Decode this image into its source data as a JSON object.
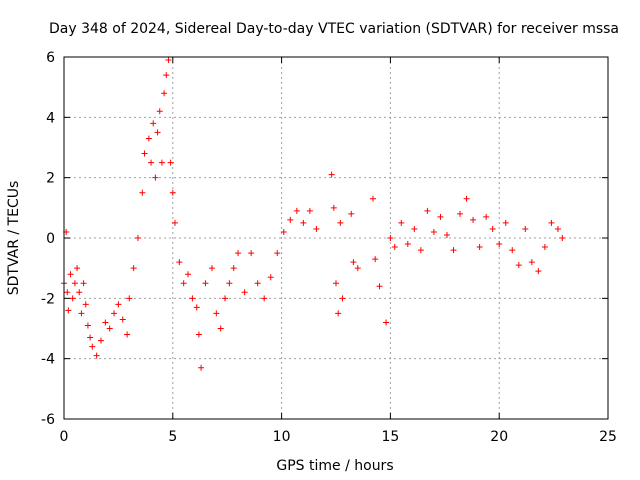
{
  "chart_data": {
    "type": "scatter",
    "title": "Day 348 of 2024, Sidereal Day-to-day VTEC variation (SDTVAR) for receiver mssa",
    "xlabel": "GPS time / hours",
    "ylabel": "SDTVAR / TECUs",
    "xlim": [
      0,
      25
    ],
    "ylim": [
      -6,
      6
    ],
    "x_ticks": [
      0,
      5,
      10,
      15,
      20,
      25
    ],
    "y_ticks": [
      -6,
      -4,
      -2,
      0,
      2,
      4,
      6
    ],
    "x_tick_labels": [
      "0",
      "5",
      "10",
      "15",
      "20",
      "25"
    ],
    "y_tick_labels": [
      "-6",
      "-4",
      "-2",
      "0",
      "2",
      "4",
      "6"
    ],
    "grid": true,
    "marker": "+",
    "series": [
      {
        "name": "SDTVAR",
        "color": "#ff0000",
        "points": [
          [
            0.0,
            -1.5
          ],
          [
            0.1,
            0.2
          ],
          [
            0.15,
            -1.8
          ],
          [
            0.2,
            -2.4
          ],
          [
            0.3,
            -1.2
          ],
          [
            0.4,
            -2.0
          ],
          [
            0.5,
            -1.5
          ],
          [
            0.6,
            -1.0
          ],
          [
            0.7,
            -1.8
          ],
          [
            0.8,
            -2.5
          ],
          [
            0.9,
            -1.5
          ],
          [
            1.0,
            -2.2
          ],
          [
            1.1,
            -2.9
          ],
          [
            1.2,
            -3.3
          ],
          [
            1.3,
            -3.6
          ],
          [
            1.5,
            -3.9
          ],
          [
            1.7,
            -3.4
          ],
          [
            1.9,
            -2.8
          ],
          [
            2.1,
            -3.0
          ],
          [
            2.3,
            -2.5
          ],
          [
            2.5,
            -2.2
          ],
          [
            2.7,
            -2.7
          ],
          [
            2.9,
            -3.2
          ],
          [
            3.0,
            -2.0
          ],
          [
            3.2,
            -1.0
          ],
          [
            3.4,
            0.0
          ],
          [
            3.6,
            1.5
          ],
          [
            3.7,
            2.8
          ],
          [
            3.9,
            3.3
          ],
          [
            4.0,
            2.5
          ],
          [
            4.1,
            3.8
          ],
          [
            4.2,
            2.0
          ],
          [
            4.3,
            3.5
          ],
          [
            4.4,
            4.2
          ],
          [
            4.5,
            2.5
          ],
          [
            4.6,
            4.8
          ],
          [
            4.7,
            5.4
          ],
          [
            4.8,
            5.9
          ],
          [
            4.9,
            2.5
          ],
          [
            5.0,
            1.5
          ],
          [
            5.1,
            0.5
          ],
          [
            5.3,
            -0.8
          ],
          [
            5.5,
            -1.5
          ],
          [
            5.7,
            -1.2
          ],
          [
            5.9,
            -2.0
          ],
          [
            6.1,
            -2.3
          ],
          [
            6.2,
            -3.2
          ],
          [
            6.3,
            -4.3
          ],
          [
            6.5,
            -1.5
          ],
          [
            6.8,
            -1.0
          ],
          [
            7.0,
            -2.5
          ],
          [
            7.2,
            -3.0
          ],
          [
            7.4,
            -2.0
          ],
          [
            7.6,
            -1.5
          ],
          [
            7.8,
            -1.0
          ],
          [
            8.0,
            -0.5
          ],
          [
            8.3,
            -1.8
          ],
          [
            8.6,
            -0.5
          ],
          [
            8.9,
            -1.5
          ],
          [
            9.2,
            -2.0
          ],
          [
            9.5,
            -1.3
          ],
          [
            9.8,
            -0.5
          ],
          [
            10.1,
            0.2
          ],
          [
            10.4,
            0.6
          ],
          [
            10.7,
            0.9
          ],
          [
            11.0,
            0.5
          ],
          [
            11.3,
            0.9
          ],
          [
            11.6,
            0.3
          ],
          [
            12.3,
            2.1
          ],
          [
            12.4,
            1.0
          ],
          [
            12.5,
            -1.5
          ],
          [
            12.6,
            -2.5
          ],
          [
            12.7,
            0.5
          ],
          [
            12.8,
            -2.0
          ],
          [
            13.2,
            0.8
          ],
          [
            13.3,
            -0.8
          ],
          [
            13.5,
            -1.0
          ],
          [
            14.2,
            1.3
          ],
          [
            14.3,
            -0.7
          ],
          [
            14.5,
            -1.6
          ],
          [
            14.8,
            -2.8
          ],
          [
            15.0,
            0.0
          ],
          [
            15.2,
            -0.3
          ],
          [
            15.5,
            0.5
          ],
          [
            15.8,
            -0.2
          ],
          [
            16.1,
            0.3
          ],
          [
            16.4,
            -0.4
          ],
          [
            16.7,
            0.9
          ],
          [
            17.0,
            0.2
          ],
          [
            17.3,
            0.7
          ],
          [
            17.6,
            0.1
          ],
          [
            17.9,
            -0.4
          ],
          [
            18.2,
            0.8
          ],
          [
            18.5,
            1.3
          ],
          [
            18.8,
            0.6
          ],
          [
            19.1,
            -0.3
          ],
          [
            19.4,
            0.7
          ],
          [
            19.7,
            0.3
          ],
          [
            20.0,
            -0.2
          ],
          [
            20.3,
            0.5
          ],
          [
            20.6,
            -0.4
          ],
          [
            20.9,
            -0.9
          ],
          [
            21.2,
            0.3
          ],
          [
            21.5,
            -0.8
          ],
          [
            21.8,
            -1.1
          ],
          [
            22.1,
            -0.3
          ],
          [
            22.4,
            0.5
          ],
          [
            22.7,
            0.3
          ],
          [
            22.9,
            0.0
          ]
        ]
      }
    ]
  }
}
